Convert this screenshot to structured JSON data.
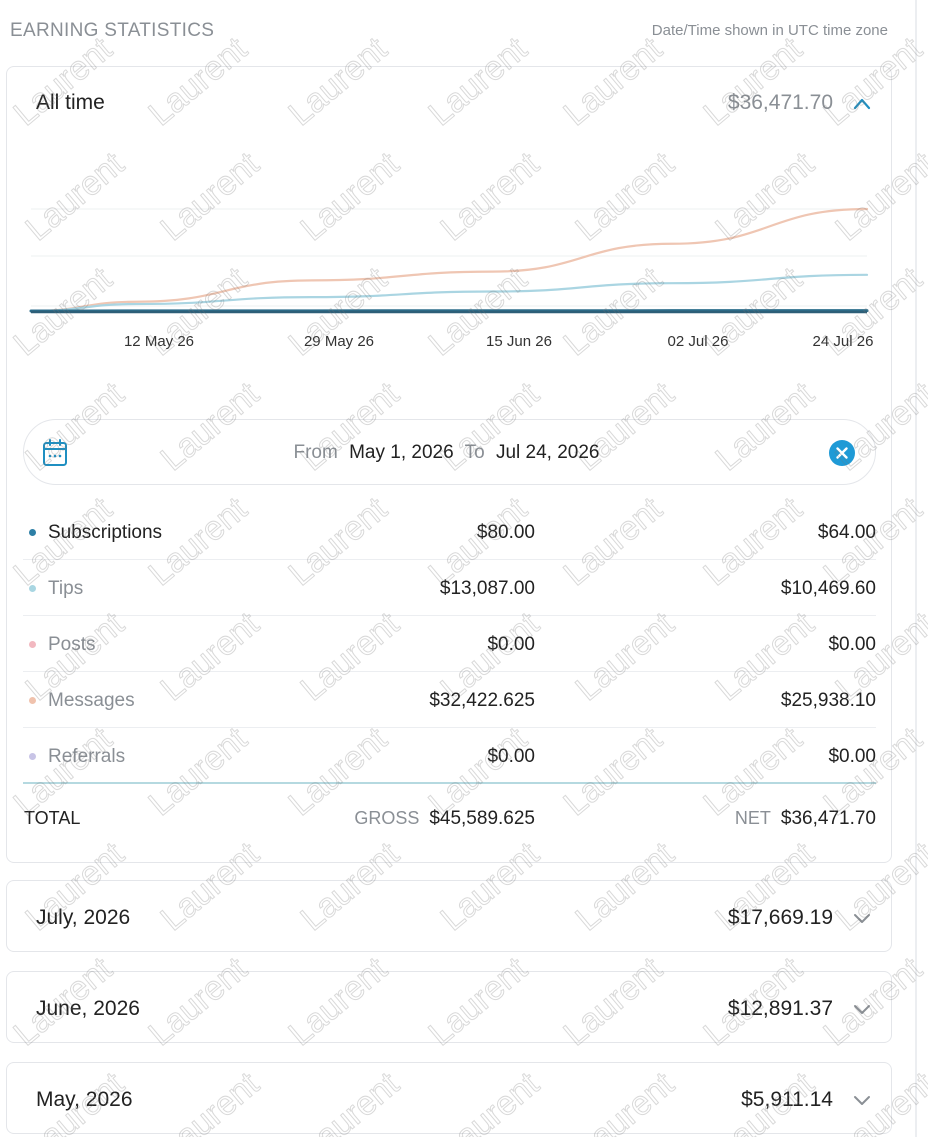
{
  "header": {
    "title": "EARNING STATISTICS",
    "timezone_note": "Date/Time shown in UTC time zone"
  },
  "summary": {
    "period_label": "All time",
    "amount": "$36,471.70"
  },
  "chart_data": {
    "type": "line",
    "x_tick_labels": [
      "12 May 26",
      "29 May 26",
      "15 Jun 26",
      "02 Jul 26",
      "24 Jul 26"
    ],
    "x": [
      "May 1",
      "May 12",
      "May 29",
      "Jun 15",
      "Jul 2",
      "Jul 24"
    ],
    "series": [
      {
        "name": "Messages",
        "color": "#efc6b3",
        "values": [
          0,
          0.2,
          0.66,
          0.85,
          1.45,
          2.2
        ]
      },
      {
        "name": "Tips",
        "color": "#aad5e2",
        "values": [
          0,
          0.15,
          0.3,
          0.42,
          0.6,
          0.78
        ]
      },
      {
        "name": "Subscriptions",
        "color": "#2d6e8c",
        "values": [
          0,
          0.002,
          0.004,
          0.005,
          0.007,
          0.008
        ]
      }
    ],
    "grid": true
  },
  "date_range": {
    "from_label": "From",
    "from_value": "May 1, 2026",
    "to_label": "To",
    "to_value": "Jul 24, 2026"
  },
  "breakdown": [
    {
      "label": "Subscriptions",
      "gross": "$80.00",
      "net": "$64.00",
      "color": "#2d7fa6",
      "muted": false
    },
    {
      "label": "Tips",
      "gross": "$13,087.00",
      "net": "$10,469.60",
      "color": "#a9d6e2",
      "muted": true
    },
    {
      "label": "Posts",
      "gross": "$0.00",
      "net": "$0.00",
      "color": "#f2b8c0",
      "muted": true
    },
    {
      "label": "Messages",
      "gross": "$32,422.625",
      "net": "$25,938.10",
      "color": "#f0c2ad",
      "muted": true
    },
    {
      "label": "Referrals",
      "gross": "$0.00",
      "net": "$0.00",
      "color": "#c8c4e6",
      "muted": true
    }
  ],
  "total": {
    "label": "TOTAL",
    "gross_label": "GROSS",
    "gross_value": "$45,589.625",
    "net_label": "NET",
    "net_value": "$36,471.70"
  },
  "months": [
    {
      "title": "July, 2026",
      "amount": "$17,669.19"
    },
    {
      "title": "June, 2026",
      "amount": "$12,891.37"
    },
    {
      "title": "May, 2026",
      "amount": "$5,911.14"
    }
  ],
  "watermark": {
    "text": "Laurent"
  }
}
